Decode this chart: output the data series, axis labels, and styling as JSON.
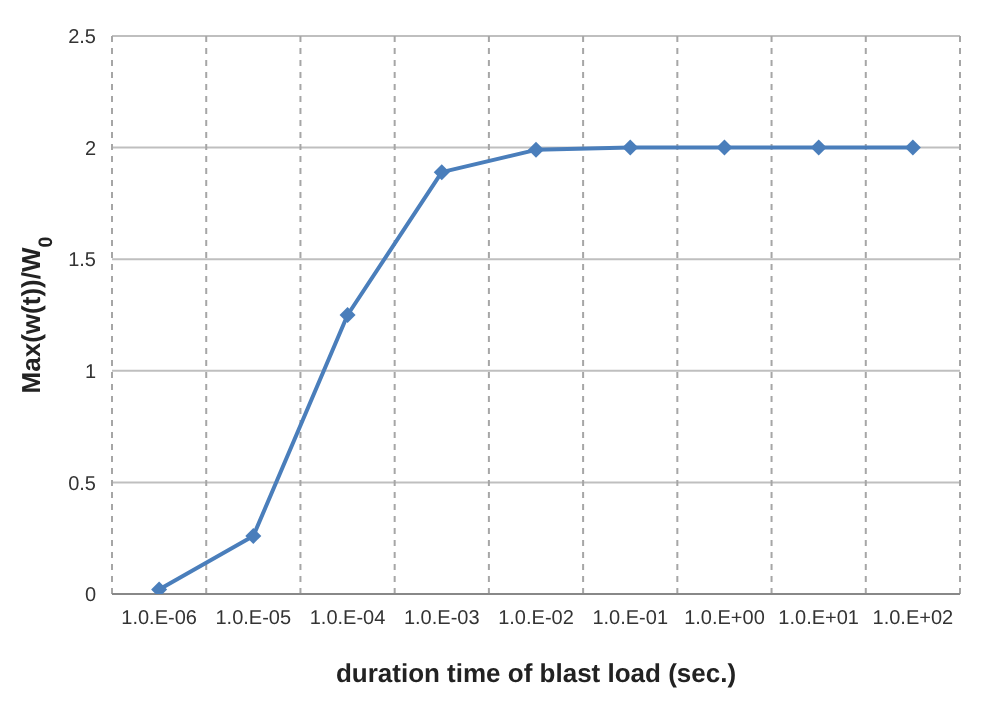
{
  "chart_data": {
    "type": "line",
    "xlabel": "duration time of blast load (sec.)",
    "ylabel": "Max(w(t))/W$_{0}$",
    "categories": [
      "1.0.E-06",
      "1.0.E-05",
      "1.0.E-04",
      "1.0.E-03",
      "1.0.E-02",
      "1.0.E-01",
      "1.0.E+00",
      "1.0.E+01",
      "1.0.E+02"
    ],
    "series": [
      {
        "color": "#4a7ebb",
        "values": [
          0.02,
          0.26,
          1.25,
          1.89,
          1.99,
          2.0,
          2.0,
          2.0,
          2.0
        ]
      }
    ],
    "ylim": [
      0,
      2.5
    ],
    "yticks": [
      0,
      0.5,
      1,
      1.5,
      2,
      2.5
    ],
    "grid": true,
    "marker": "diamond",
    "line_style": "solid"
  }
}
